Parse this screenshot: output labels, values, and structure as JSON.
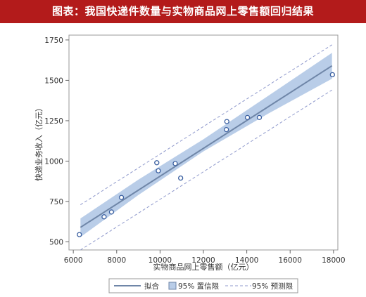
{
  "header": {
    "title": "图表：我国快递件数量与实物商品网上零售额回归结果"
  },
  "chart_data": {
    "type": "scatter",
    "xlabel": "实物商品网上零售额（亿元）",
    "ylabel": "快递业务收入（亿元）",
    "xlim": [
      5800,
      18200
    ],
    "ylim": [
      450,
      1780
    ],
    "xticks": [
      6000,
      8000,
      10000,
      12000,
      14000,
      16000,
      18000
    ],
    "yticks": [
      500,
      750,
      1000,
      1250,
      1500,
      1750
    ],
    "grid": false,
    "legend_position": "bottom",
    "series": [
      {
        "name": "拟合",
        "kind": "line",
        "x": [
          6330,
          17930
        ],
        "y": [
          590,
          1590
        ]
      },
      {
        "name": "95% 置信限",
        "kind": "band",
        "x": [
          6330,
          9000,
          12000,
          15000,
          17930
        ],
        "upper": [
          645,
          885,
          1135,
          1405,
          1670
        ],
        "lower": [
          530,
          790,
          1060,
          1295,
          1510
        ]
      },
      {
        "name": "95% 预测限",
        "kind": "dashed-band",
        "x": [
          6330,
          17930
        ],
        "upper": [
          730,
          1720
        ],
        "lower": [
          450,
          1440
        ]
      },
      {
        "name": "",
        "kind": "points",
        "points": [
          [
            6280,
            545
          ],
          [
            7420,
            655
          ],
          [
            7760,
            685
          ],
          [
            8220,
            775
          ],
          [
            9850,
            990
          ],
          [
            9920,
            940
          ],
          [
            10700,
            985
          ],
          [
            10950,
            895
          ],
          [
            13080,
            1245
          ],
          [
            13060,
            1195
          ],
          [
            14030,
            1270
          ],
          [
            14580,
            1270
          ],
          [
            17950,
            1535
          ]
        ]
      }
    ],
    "colors": {
      "fit": "#6f86a8",
      "band": "#b9cde8",
      "points": "#3a5fa0",
      "prediction": "#8f99cc"
    }
  }
}
